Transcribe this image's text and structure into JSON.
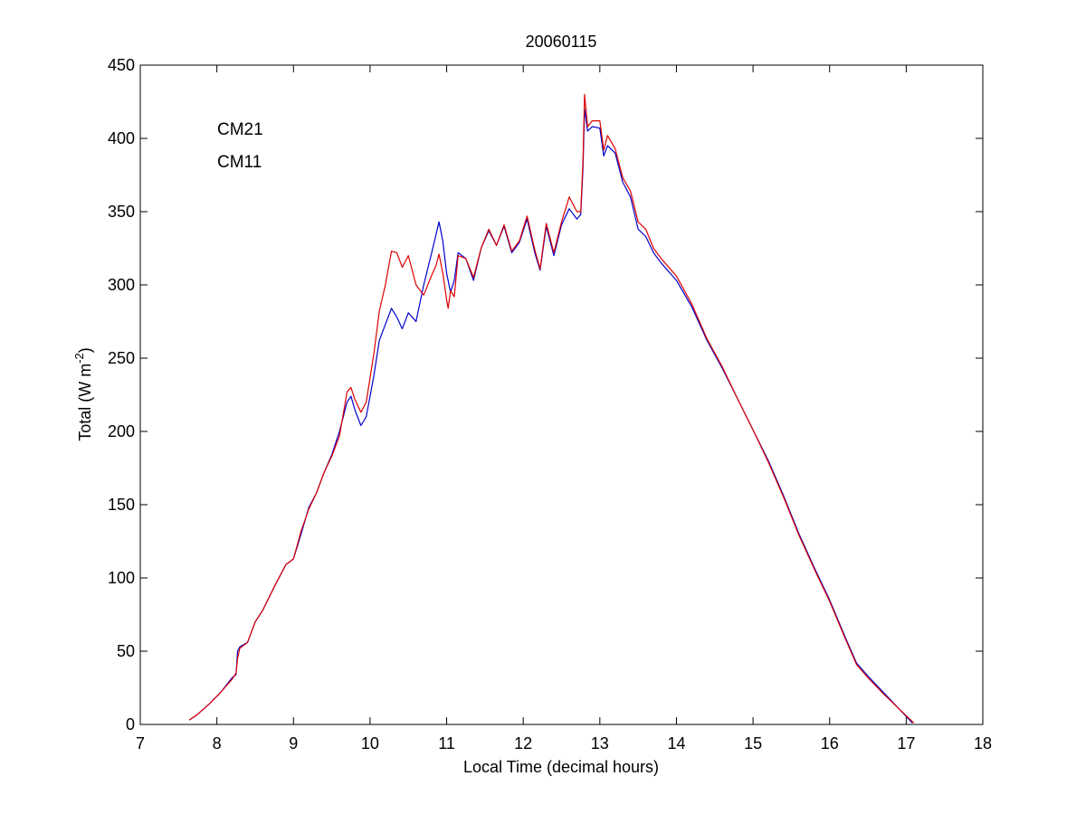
{
  "chart_data": {
    "type": "line",
    "title": "20060115",
    "xlabel": "Local Time (decimal hours)",
    "ylabel": {
      "prefix": "Total (W m",
      "superscript": "-2",
      "suffix": ")"
    },
    "xlim": [
      7,
      18
    ],
    "ylim": [
      0,
      450
    ],
    "x_ticks": [
      7,
      8,
      9,
      10,
      11,
      12,
      13,
      14,
      15,
      16,
      17,
      18
    ],
    "y_ticks": [
      0,
      50,
      100,
      150,
      200,
      250,
      300,
      350,
      400,
      450
    ],
    "grid": false,
    "legend_position": "top-left",
    "series": [
      {
        "name": "CM21",
        "color": "#0000CC",
        "points": [
          [
            7.64,
            3
          ],
          [
            7.75,
            7
          ],
          [
            7.9,
            14
          ],
          [
            8.05,
            22
          ],
          [
            8.2,
            32
          ],
          [
            8.25,
            34
          ],
          [
            8.27,
            50
          ],
          [
            8.3,
            53
          ],
          [
            8.4,
            56
          ],
          [
            8.5,
            70
          ],
          [
            8.6,
            78
          ],
          [
            8.75,
            94
          ],
          [
            8.9,
            109
          ],
          [
            9.0,
            113
          ],
          [
            9.1,
            130
          ],
          [
            9.2,
            148
          ],
          [
            9.3,
            158
          ],
          [
            9.4,
            172
          ],
          [
            9.5,
            184
          ],
          [
            9.6,
            200
          ],
          [
            9.65,
            210
          ],
          [
            9.7,
            220
          ],
          [
            9.75,
            224
          ],
          [
            9.8,
            215
          ],
          [
            9.88,
            204
          ],
          [
            9.95,
            210
          ],
          [
            10.05,
            238
          ],
          [
            10.12,
            262
          ],
          [
            10.2,
            273
          ],
          [
            10.28,
            284
          ],
          [
            10.35,
            278
          ],
          [
            10.42,
            270
          ],
          [
            10.5,
            281
          ],
          [
            10.6,
            275
          ],
          [
            10.7,
            300
          ],
          [
            10.8,
            321
          ],
          [
            10.86,
            334
          ],
          [
            10.9,
            343
          ],
          [
            10.95,
            330
          ],
          [
            11.0,
            308
          ],
          [
            11.05,
            295
          ],
          [
            11.1,
            303
          ],
          [
            11.15,
            322
          ],
          [
            11.25,
            318
          ],
          [
            11.35,
            303
          ],
          [
            11.45,
            325
          ],
          [
            11.55,
            337
          ],
          [
            11.65,
            327
          ],
          [
            11.75,
            340
          ],
          [
            11.85,
            322
          ],
          [
            11.95,
            329
          ],
          [
            12.05,
            345
          ],
          [
            12.15,
            322
          ],
          [
            12.22,
            310
          ],
          [
            12.3,
            340
          ],
          [
            12.4,
            320
          ],
          [
            12.5,
            341
          ],
          [
            12.6,
            352
          ],
          [
            12.7,
            345
          ],
          [
            12.75,
            348
          ],
          [
            12.78,
            380
          ],
          [
            12.8,
            420
          ],
          [
            12.84,
            405
          ],
          [
            12.9,
            408
          ],
          [
            13.0,
            407
          ],
          [
            13.05,
            388
          ],
          [
            13.1,
            395
          ],
          [
            13.2,
            390
          ],
          [
            13.3,
            370
          ],
          [
            13.4,
            360
          ],
          [
            13.5,
            338
          ],
          [
            13.6,
            333
          ],
          [
            13.7,
            322
          ],
          [
            13.8,
            315
          ],
          [
            14.0,
            303
          ],
          [
            14.2,
            285
          ],
          [
            14.4,
            262
          ],
          [
            14.6,
            243
          ],
          [
            14.8,
            222
          ],
          [
            15.0,
            201
          ],
          [
            15.2,
            180
          ],
          [
            15.4,
            156
          ],
          [
            15.6,
            130
          ],
          [
            15.8,
            107
          ],
          [
            16.0,
            85
          ],
          [
            16.2,
            60
          ],
          [
            16.35,
            42
          ],
          [
            16.5,
            33
          ],
          [
            16.7,
            22
          ],
          [
            16.9,
            11
          ],
          [
            17.08,
            1
          ]
        ]
      },
      {
        "name": "CM11",
        "color": "#DD0000",
        "points": [
          [
            7.64,
            3
          ],
          [
            7.75,
            7
          ],
          [
            7.9,
            14
          ],
          [
            8.05,
            22
          ],
          [
            8.2,
            31
          ],
          [
            8.25,
            35
          ],
          [
            8.27,
            45
          ],
          [
            8.3,
            52
          ],
          [
            8.4,
            56
          ],
          [
            8.5,
            70
          ],
          [
            8.6,
            78
          ],
          [
            8.75,
            94
          ],
          [
            8.9,
            109
          ],
          [
            9.0,
            113
          ],
          [
            9.1,
            132
          ],
          [
            9.2,
            147
          ],
          [
            9.3,
            158
          ],
          [
            9.4,
            172
          ],
          [
            9.5,
            183
          ],
          [
            9.6,
            197
          ],
          [
            9.65,
            212
          ],
          [
            9.7,
            227
          ],
          [
            9.75,
            230
          ],
          [
            9.8,
            222
          ],
          [
            9.88,
            213
          ],
          [
            9.95,
            220
          ],
          [
            10.05,
            253
          ],
          [
            10.12,
            282
          ],
          [
            10.2,
            300
          ],
          [
            10.28,
            323
          ],
          [
            10.35,
            322
          ],
          [
            10.42,
            312
          ],
          [
            10.5,
            320
          ],
          [
            10.6,
            300
          ],
          [
            10.7,
            293
          ],
          [
            10.8,
            306
          ],
          [
            10.86,
            313
          ],
          [
            10.9,
            321
          ],
          [
            10.95,
            308
          ],
          [
            11.0,
            290
          ],
          [
            11.02,
            284
          ],
          [
            11.05,
            296
          ],
          [
            11.1,
            292
          ],
          [
            11.15,
            320
          ],
          [
            11.25,
            318
          ],
          [
            11.35,
            305
          ],
          [
            11.45,
            325
          ],
          [
            11.55,
            338
          ],
          [
            11.65,
            327
          ],
          [
            11.75,
            341
          ],
          [
            11.85,
            323
          ],
          [
            11.95,
            330
          ],
          [
            12.05,
            347
          ],
          [
            12.15,
            324
          ],
          [
            12.22,
            311
          ],
          [
            12.3,
            342
          ],
          [
            12.4,
            322
          ],
          [
            12.5,
            343
          ],
          [
            12.6,
            360
          ],
          [
            12.7,
            350
          ],
          [
            12.75,
            350
          ],
          [
            12.78,
            385
          ],
          [
            12.8,
            430
          ],
          [
            12.84,
            408
          ],
          [
            12.9,
            412
          ],
          [
            13.0,
            412
          ],
          [
            13.05,
            392
          ],
          [
            13.1,
            402
          ],
          [
            13.2,
            393
          ],
          [
            13.3,
            373
          ],
          [
            13.4,
            364
          ],
          [
            13.5,
            343
          ],
          [
            13.6,
            338
          ],
          [
            13.7,
            325
          ],
          [
            13.8,
            318
          ],
          [
            14.0,
            306
          ],
          [
            14.2,
            287
          ],
          [
            14.4,
            263
          ],
          [
            14.6,
            244
          ],
          [
            14.8,
            222
          ],
          [
            15.0,
            201
          ],
          [
            15.2,
            179
          ],
          [
            15.4,
            155
          ],
          [
            15.6,
            129
          ],
          [
            15.8,
            106
          ],
          [
            16.0,
            84
          ],
          [
            16.2,
            59
          ],
          [
            16.35,
            41
          ],
          [
            16.5,
            32
          ],
          [
            16.7,
            21
          ],
          [
            16.9,
            11
          ],
          [
            17.1,
            1
          ]
        ]
      }
    ]
  }
}
